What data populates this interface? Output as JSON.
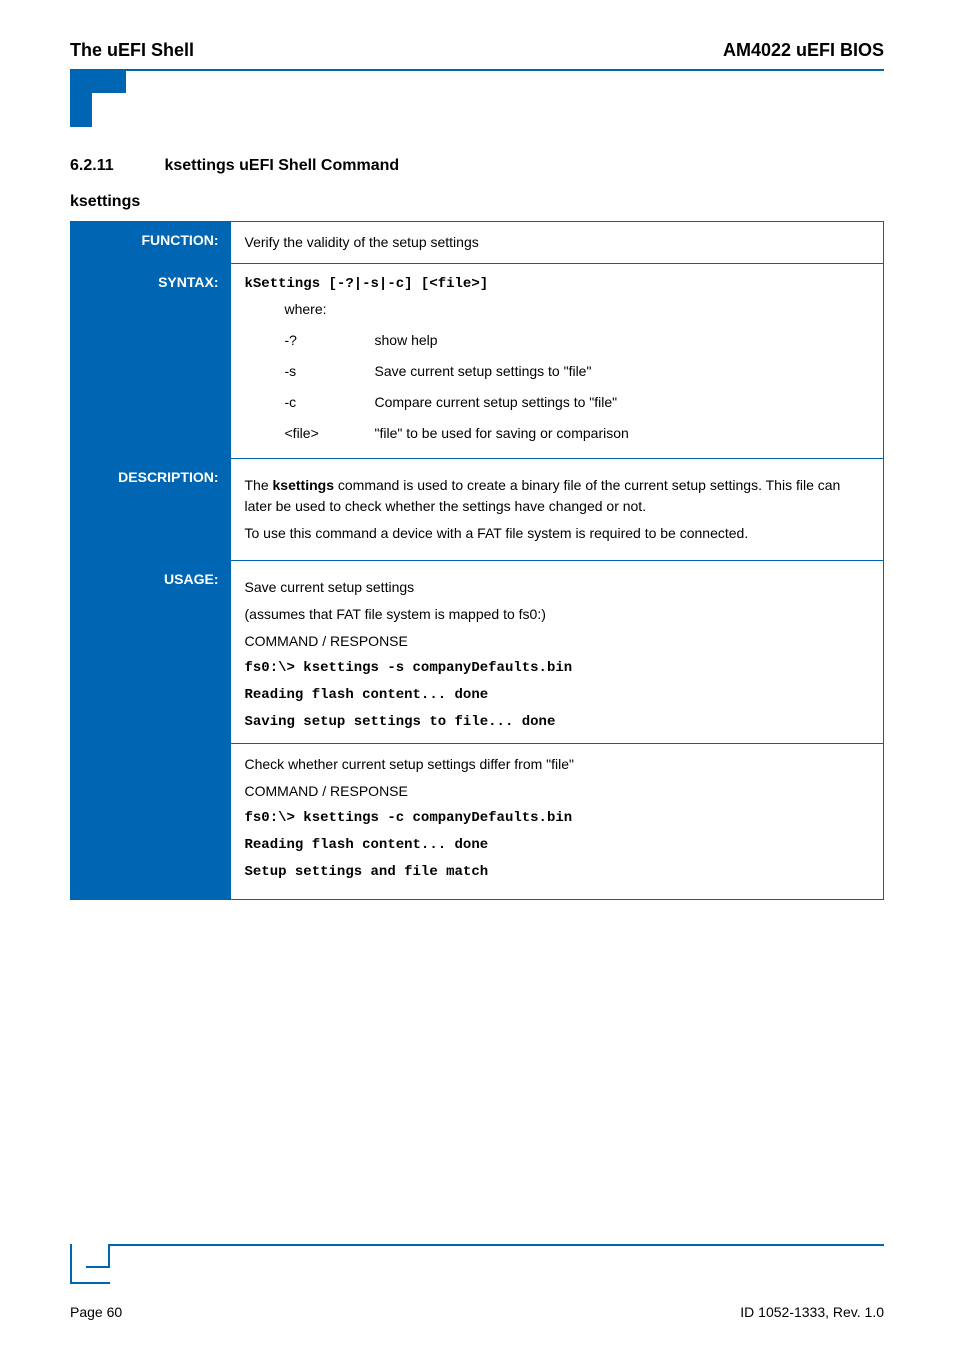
{
  "header": {
    "left": "The uEFI Shell",
    "right": "AM4022 uEFI BIOS"
  },
  "section": {
    "number": "6.2.11",
    "title": "ksettings uEFI Shell Command"
  },
  "subheading": "ksettings",
  "function": {
    "label": "FUNCTION:",
    "text": "Verify the validity of the setup settings"
  },
  "syntax": {
    "label": "SYNTAX:",
    "command": "kSettings [-?|-s|-c] [<file>]",
    "where_label": "where:",
    "options": [
      {
        "flag": "-?",
        "desc": "show help"
      },
      {
        "flag": "-s",
        "desc": "Save current setup settings to \"file\""
      },
      {
        "flag": "-c",
        "desc": "Compare current setup settings to \"file\""
      },
      {
        "flag": "<file>",
        "desc": "\"file\" to be used for saving or comparison"
      }
    ]
  },
  "description": {
    "label": "DESCRIPTION:",
    "p1a": "The ",
    "p1b": "ksettings",
    "p1c": " command is used to create a binary file of the current setup settings. This file can later be used to check whether the settings have changed or not.",
    "p2": "To use this command a device with a FAT file system is required to be connected."
  },
  "usage": {
    "label": "USAGE:",
    "block1": {
      "l1": "Save current setup settings",
      "l2": "(assumes that FAT file system is mapped to fs0:)",
      "l3": "COMMAND / RESPONSE",
      "c1": "fs0:\\> ksettings -s companyDefaults.bin",
      "c2": "Reading flash content... done",
      "c3": "Saving setup settings to file... done"
    },
    "block2": {
      "l1": "Check whether current setup settings differ from \"file\"",
      "l2": "COMMAND / RESPONSE",
      "c1": "fs0:\\> ksettings -c companyDefaults.bin",
      "c2": "Reading flash content... done",
      "c3": "Setup settings and file match"
    }
  },
  "footer": {
    "left": "Page 60",
    "right": "ID 1052-1333, Rev. 1.0"
  },
  "colors": {
    "brand": "#0066b3",
    "text": "#000000",
    "bg": "#ffffff"
  }
}
